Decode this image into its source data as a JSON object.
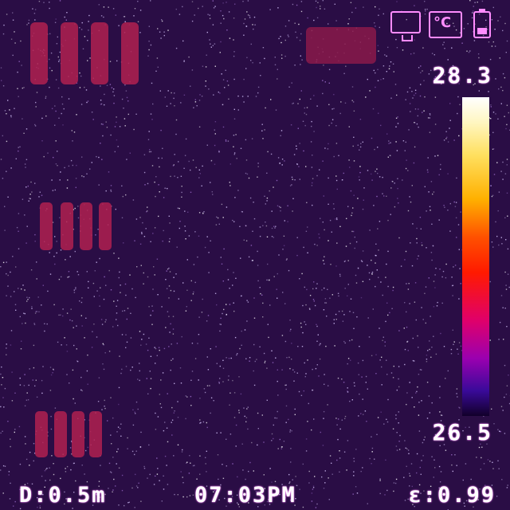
{
  "status_icons": {
    "monitor": "monitor-icon",
    "temp_unit": "celsius-icon",
    "temp_unit_symbol": "°C",
    "battery": "battery-icon"
  },
  "scale": {
    "max_label": "28.3",
    "min_label": "26.5"
  },
  "readouts": {
    "distance": "D:0.5m",
    "time": "07:03PM",
    "emissivity": "ε:0.99"
  },
  "colors": {
    "background": "#2a0d45",
    "hot_spot": "#b02050",
    "hud_glow": "#ff8cff",
    "text": "#ffffff"
  }
}
